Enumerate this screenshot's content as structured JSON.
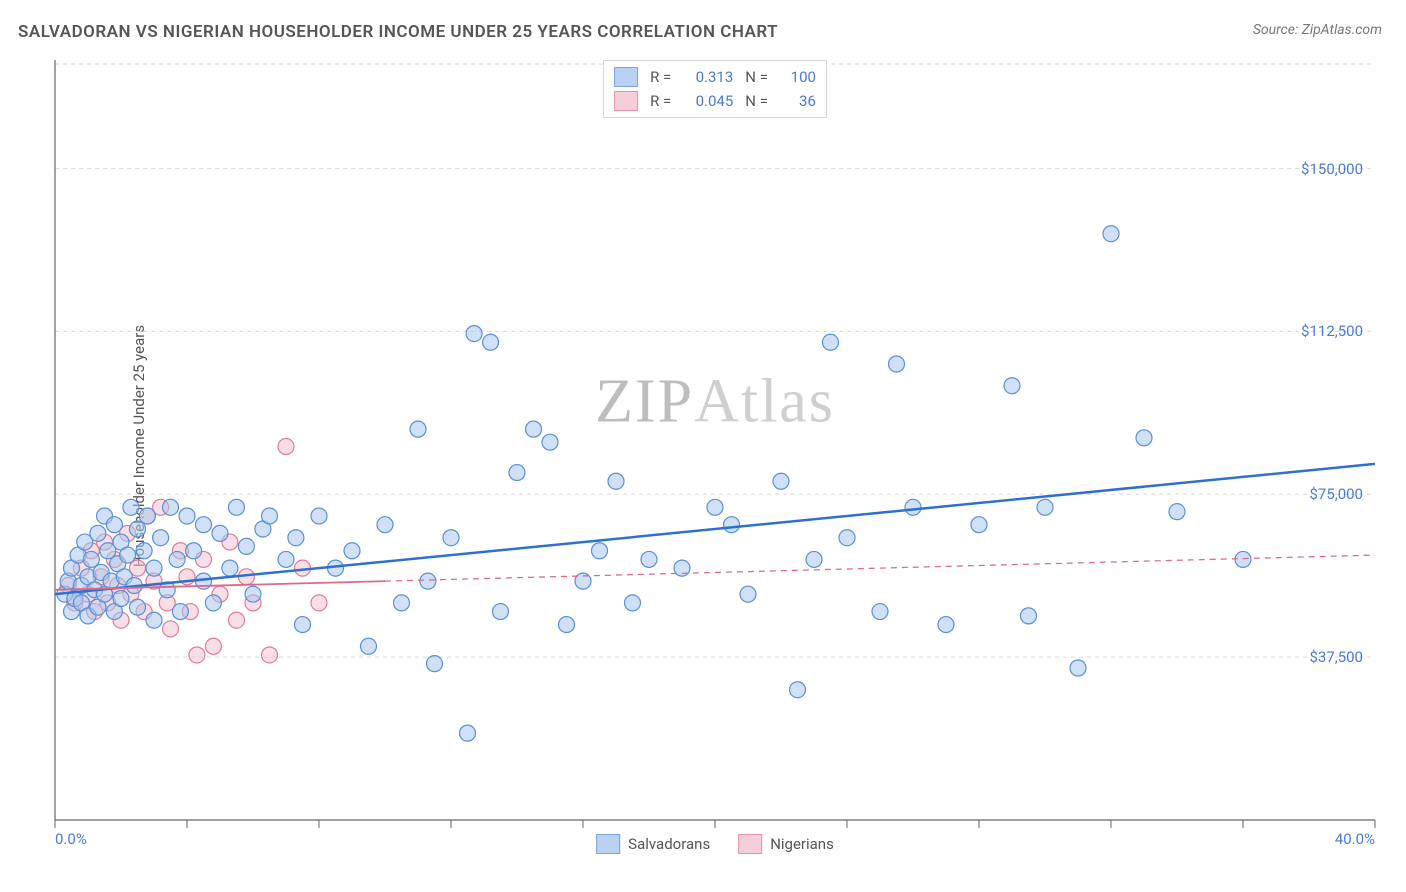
{
  "title": "SALVADORAN VS NIGERIAN HOUSEHOLDER INCOME UNDER 25 YEARS CORRELATION CHART",
  "source_prefix": "Source: ",
  "source": "ZipAtlas.com",
  "ylabel": "Householder Income Under 25 years",
  "watermark_a": "ZIP",
  "watermark_b": "Atlas",
  "chart": {
    "type": "scatter",
    "background_color": "#ffffff",
    "grid_color": "#d8d8d8",
    "grid_dash": "4,4",
    "axis_color": "#666666",
    "xlim": [
      0,
      40
    ],
    "ylim": [
      0,
      175000
    ],
    "xticks_major": [
      0,
      4,
      8,
      12,
      16,
      20,
      24,
      28,
      32,
      36,
      40
    ],
    "xtick_labels": {
      "0": "0.0%",
      "40": "40.0%"
    },
    "yticks": [
      37500,
      75000,
      112500,
      150000
    ],
    "ytick_labels": {
      "37500": "$37,500",
      "75000": "$75,000",
      "112500": "$112,500",
      "150000": "$150,000"
    },
    "tick_label_color": "#4a7bd8",
    "tick_label_fontsize": 15,
    "marker_radius": 8,
    "marker_stroke_width": 1.2,
    "series": [
      {
        "name": "Salvadorans",
        "fill": "#a9c6ef",
        "stroke": "#5b8fd6",
        "fill_opacity": 0.55,
        "trend": {
          "y_at_xmin": 52000,
          "y_at_xmax": 82000,
          "color": "#2f6fd0",
          "width": 2.5,
          "dash": null,
          "solid_until_x": 40
        },
        "R": 0.313,
        "N": 100,
        "points": [
          [
            0.3,
            52000
          ],
          [
            0.4,
            55000
          ],
          [
            0.5,
            48000
          ],
          [
            0.5,
            58000
          ],
          [
            0.6,
            51000
          ],
          [
            0.7,
            61000
          ],
          [
            0.8,
            54000
          ],
          [
            0.8,
            50000
          ],
          [
            0.9,
            64000
          ],
          [
            1.0,
            56000
          ],
          [
            1.0,
            47000
          ],
          [
            1.1,
            60000
          ],
          [
            1.2,
            53000
          ],
          [
            1.3,
            66000
          ],
          [
            1.3,
            49000
          ],
          [
            1.4,
            57000
          ],
          [
            1.5,
            70000
          ],
          [
            1.5,
            52000
          ],
          [
            1.6,
            62000
          ],
          [
            1.7,
            55000
          ],
          [
            1.8,
            48000
          ],
          [
            1.8,
            68000
          ],
          [
            1.9,
            59000
          ],
          [
            2.0,
            51000
          ],
          [
            2.0,
            64000
          ],
          [
            2.1,
            56000
          ],
          [
            2.2,
            61000
          ],
          [
            2.3,
            72000
          ],
          [
            2.4,
            54000
          ],
          [
            2.5,
            67000
          ],
          [
            2.5,
            49000
          ],
          [
            2.7,
            62000
          ],
          [
            2.8,
            70000
          ],
          [
            3.0,
            58000
          ],
          [
            3.0,
            46000
          ],
          [
            3.2,
            65000
          ],
          [
            3.4,
            53000
          ],
          [
            3.5,
            72000
          ],
          [
            3.7,
            60000
          ],
          [
            3.8,
            48000
          ],
          [
            4.0,
            70000
          ],
          [
            4.2,
            62000
          ],
          [
            4.5,
            55000
          ],
          [
            4.5,
            68000
          ],
          [
            4.8,
            50000
          ],
          [
            5.0,
            66000
          ],
          [
            5.3,
            58000
          ],
          [
            5.5,
            72000
          ],
          [
            5.8,
            63000
          ],
          [
            6.0,
            52000
          ],
          [
            6.3,
            67000
          ],
          [
            6.5,
            70000
          ],
          [
            7.0,
            60000
          ],
          [
            7.3,
            65000
          ],
          [
            7.5,
            45000
          ],
          [
            8.0,
            70000
          ],
          [
            8.5,
            58000
          ],
          [
            9.0,
            62000
          ],
          [
            9.5,
            40000
          ],
          [
            10.0,
            68000
          ],
          [
            10.5,
            50000
          ],
          [
            11.0,
            90000
          ],
          [
            11.3,
            55000
          ],
          [
            11.5,
            36000
          ],
          [
            12.0,
            65000
          ],
          [
            12.5,
            20000
          ],
          [
            12.7,
            112000
          ],
          [
            13.2,
            110000
          ],
          [
            13.5,
            48000
          ],
          [
            14.0,
            80000
          ],
          [
            14.5,
            90000
          ],
          [
            15.0,
            87000
          ],
          [
            15.5,
            45000
          ],
          [
            16.0,
            55000
          ],
          [
            16.5,
            62000
          ],
          [
            17.0,
            78000
          ],
          [
            17.5,
            50000
          ],
          [
            18.0,
            60000
          ],
          [
            19.0,
            58000
          ],
          [
            20.0,
            72000
          ],
          [
            20.5,
            68000
          ],
          [
            21.0,
            52000
          ],
          [
            22.0,
            78000
          ],
          [
            22.5,
            30000
          ],
          [
            23.0,
            60000
          ],
          [
            23.5,
            110000
          ],
          [
            24.0,
            65000
          ],
          [
            25.0,
            48000
          ],
          [
            25.5,
            105000
          ],
          [
            26.0,
            72000
          ],
          [
            27.0,
            45000
          ],
          [
            28.0,
            68000
          ],
          [
            29.0,
            100000
          ],
          [
            29.5,
            47000
          ],
          [
            30.0,
            72000
          ],
          [
            31.0,
            35000
          ],
          [
            32.0,
            135000
          ],
          [
            33.0,
            88000
          ],
          [
            34.0,
            71000
          ],
          [
            36.0,
            60000
          ]
        ]
      },
      {
        "name": "Nigerians",
        "fill": "#f2c3cf",
        "stroke": "#e17a99",
        "fill_opacity": 0.55,
        "trend": {
          "y_at_xmin": 53000,
          "y_at_xmax": 61000,
          "color": "#d96a8a",
          "width": 1.8,
          "dash": "6,5",
          "solid_until_x": 10
        },
        "R": 0.045,
        "N": 36,
        "points": [
          [
            0.4,
            54000
          ],
          [
            0.6,
            50000
          ],
          [
            0.8,
            58000
          ],
          [
            1.0,
            52000
          ],
          [
            1.1,
            62000
          ],
          [
            1.2,
            48000
          ],
          [
            1.4,
            56000
          ],
          [
            1.5,
            64000
          ],
          [
            1.6,
            50000
          ],
          [
            1.8,
            60000
          ],
          [
            1.9,
            54000
          ],
          [
            2.0,
            46000
          ],
          [
            2.2,
            66000
          ],
          [
            2.3,
            52000
          ],
          [
            2.5,
            58000
          ],
          [
            2.7,
            48000
          ],
          [
            2.8,
            70000
          ],
          [
            3.0,
            55000
          ],
          [
            3.2,
            72000
          ],
          [
            3.4,
            50000
          ],
          [
            3.5,
            44000
          ],
          [
            3.8,
            62000
          ],
          [
            4.0,
            56000
          ],
          [
            4.1,
            48000
          ],
          [
            4.3,
            38000
          ],
          [
            4.5,
            60000
          ],
          [
            4.8,
            40000
          ],
          [
            5.0,
            52000
          ],
          [
            5.3,
            64000
          ],
          [
            5.5,
            46000
          ],
          [
            5.8,
            56000
          ],
          [
            6.0,
            50000
          ],
          [
            6.5,
            38000
          ],
          [
            7.0,
            86000
          ],
          [
            7.5,
            58000
          ],
          [
            8.0,
            50000
          ]
        ]
      }
    ],
    "legend_top": {
      "R_label": "R =",
      "N_label": "N ="
    },
    "legend_bottom_order": [
      "Salvadorans",
      "Nigerians"
    ]
  }
}
